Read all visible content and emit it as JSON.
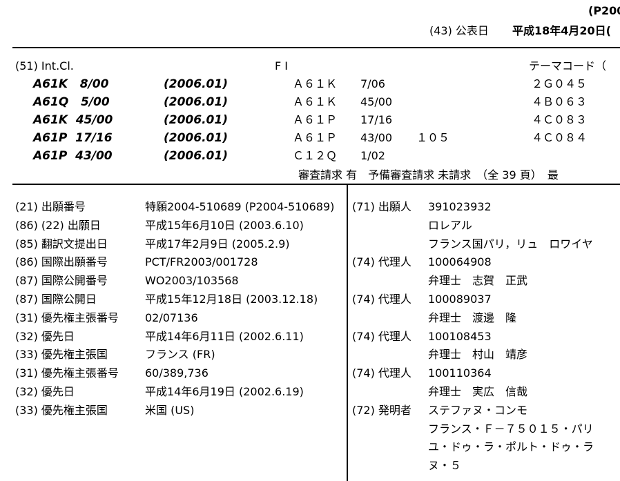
{
  "header": {
    "pub_number_fragment": "(P200",
    "pub_date_label": "(43) 公表日",
    "pub_date": "平成18年4月20日("
  },
  "classification": {
    "headers": [
      "(51) Int.Cl.",
      "F I",
      "テーマコード（"
    ],
    "ipc": [
      {
        "code": "A61K   8/00",
        "version": "(2006.01)"
      },
      {
        "code": "A61Q   5/00",
        "version": "(2006.01)"
      },
      {
        "code": "A61K  45/00",
        "version": "(2006.01)"
      },
      {
        "code": "A61P  17/16",
        "version": "(2006.01)"
      },
      {
        "code": "A61P  43/00",
        "version": "(2006.01)"
      }
    ],
    "fi": [
      {
        "code": "Ａ６１Ｋ",
        "group": "7/06"
      },
      {
        "code": "Ａ６１Ｋ",
        "group": "45/00"
      },
      {
        "code": "Ａ６１Ｐ",
        "group": "17/16"
      },
      {
        "code": "Ａ６１Ｐ",
        "group": "43/00",
        "extra": "１０５"
      },
      {
        "code": "Ｃ１２Ｑ",
        "group": "1/02"
      }
    ],
    "theme_codes": [
      "２Ｇ０４５",
      "４Ｂ０６３",
      "４Ｃ０８３",
      "４Ｃ０８４"
    ],
    "exam_line": "審査請求 有　予備審査請求 未請求　（全 39 頁）　最"
  },
  "bibliography": [
    {
      "label": "(21) 出願番号",
      "value": "特願2004-510689 (P2004-510689)"
    },
    {
      "label": "(86) (22) 出願日",
      "value": "平成15年6月10日 (2003.6.10)"
    },
    {
      "label": "(85) 翻訳文提出日",
      "value": "平成17年2月9日 (2005.2.9)"
    },
    {
      "label": "(86) 国際出願番号",
      "value": "PCT/FR2003/001728"
    },
    {
      "label": "(87) 国際公開番号",
      "value": "WO2003/103568"
    },
    {
      "label": "(87) 国際公開日",
      "value": "平成15年12月18日 (2003.12.18)"
    },
    {
      "label": "(31) 優先権主張番号",
      "value": "02/07136"
    },
    {
      "label": "(32) 優先日",
      "value": "平成14年6月11日 (2002.6.11)"
    },
    {
      "label": "(33) 優先権主張国",
      "value": "フランス (FR)"
    },
    {
      "label": "(31) 優先権主張番号",
      "value": "60/389,736"
    },
    {
      "label": "(32) 優先日",
      "value": "平成14年6月19日 (2002.6.19)"
    },
    {
      "label": "(33) 優先権主張国",
      "value": "米国 (US)"
    }
  ],
  "parties": [
    {
      "label": "(71) 出願人",
      "lines": [
        "391023932",
        "ロレアル",
        "フランス国パリ，リュ　ロワイヤ"
      ]
    },
    {
      "label": "(74) 代理人",
      "lines": [
        "100064908",
        "弁理士　志賀　正武"
      ]
    },
    {
      "label": "(74) 代理人",
      "lines": [
        "100089037",
        "弁理士　渡邊　隆"
      ]
    },
    {
      "label": "(74) 代理人",
      "lines": [
        "100108453",
        "弁理士　村山　靖彦"
      ]
    },
    {
      "label": "(74) 代理人",
      "lines": [
        "100110364",
        "弁理士　実広　信哉"
      ]
    },
    {
      "label": "(72) 発明者",
      "lines": [
        "ステファヌ・コンモ",
        "フランス・Ｆ－７５０１５・パリ",
        "ユ・ドゥ・ラ・ポルト・ドゥ・ラ",
        "ヌ・５"
      ]
    }
  ]
}
